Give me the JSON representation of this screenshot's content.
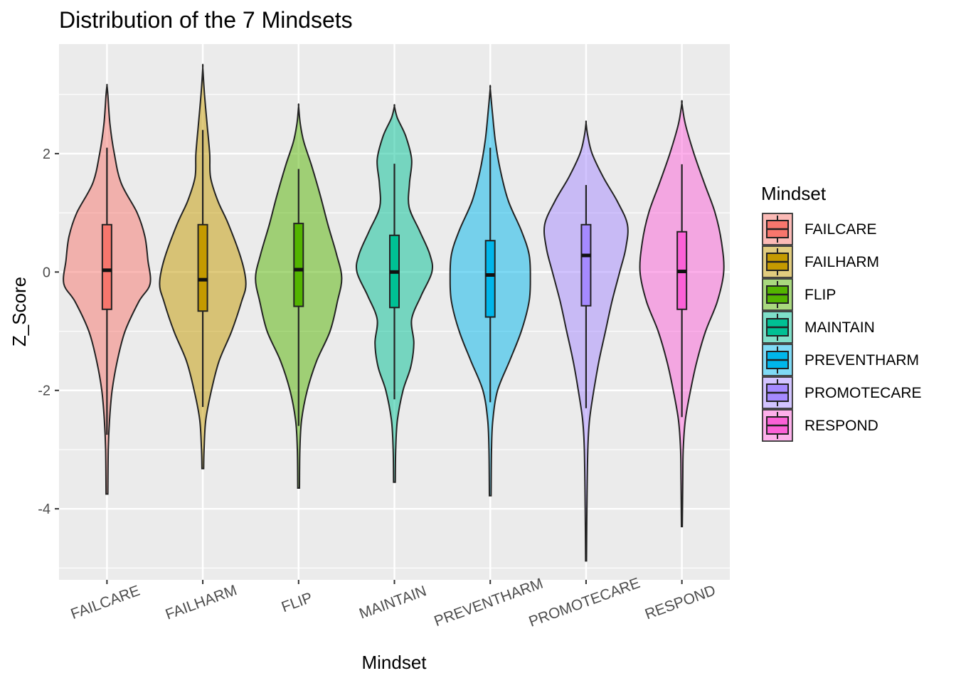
{
  "chart_data": {
    "type": "violin",
    "title": "Distribution of the 7 Mindsets",
    "xlabel": "Mindset",
    "ylabel": "Z_Score",
    "ylim": [
      -5.2,
      3.85
    ],
    "yticks": [
      -4,
      -2,
      0,
      2
    ],
    "ytick_labels": [
      "-4",
      "-2",
      "0",
      "2"
    ],
    "grid": true,
    "legend": {
      "title": "Mindset",
      "position": "right"
    },
    "categories": [
      "FAILCARE",
      "FAILHARM",
      "FLIP",
      "MAINTAIN",
      "PREVENTHARM",
      "PROMOTECARE",
      "RESPOND"
    ],
    "series": [
      {
        "name": "FAILCARE",
        "color": "#F8766D",
        "box": {
          "lower_whisker": -2.75,
          "q1": -0.63,
          "median": 0.03,
          "q3": 0.8,
          "upper_whisker": 2.1
        },
        "density": [
          [
            -3.75,
            0.02
          ],
          [
            -3.0,
            0.03
          ],
          [
            -2.5,
            0.06
          ],
          [
            -2.0,
            0.12
          ],
          [
            -1.5,
            0.24
          ],
          [
            -1.0,
            0.42
          ],
          [
            -0.5,
            0.74
          ],
          [
            -0.2,
            1.0
          ],
          [
            0.2,
            0.95
          ],
          [
            0.6,
            0.88
          ],
          [
            1.0,
            0.7
          ],
          [
            1.5,
            0.33
          ],
          [
            2.0,
            0.17
          ],
          [
            2.5,
            0.07
          ],
          [
            3.0,
            0.02
          ],
          [
            3.15,
            0.0
          ]
        ]
      },
      {
        "name": "FAILHARM",
        "color": "#C49A00",
        "box": {
          "lower_whisker": -2.28,
          "q1": -0.66,
          "median": -0.13,
          "q3": 0.8,
          "upper_whisker": 2.4
        },
        "density": [
          [
            -3.32,
            0.02
          ],
          [
            -3.0,
            0.03
          ],
          [
            -2.5,
            0.07
          ],
          [
            -2.0,
            0.2
          ],
          [
            -1.5,
            0.38
          ],
          [
            -1.0,
            0.67
          ],
          [
            -0.5,
            0.9
          ],
          [
            -0.2,
            1.0
          ],
          [
            0.2,
            0.9
          ],
          [
            0.8,
            0.6
          ],
          [
            1.2,
            0.35
          ],
          [
            1.6,
            0.18
          ],
          [
            2.0,
            0.16
          ],
          [
            2.5,
            0.1
          ],
          [
            3.0,
            0.04
          ],
          [
            3.45,
            0.0
          ]
        ]
      },
      {
        "name": "FLIP",
        "color": "#53B400",
        "box": {
          "lower_whisker": -2.6,
          "q1": -0.58,
          "median": 0.04,
          "q3": 0.82,
          "upper_whisker": 1.74
        },
        "density": [
          [
            -3.65,
            0.02
          ],
          [
            -3.0,
            0.03
          ],
          [
            -2.5,
            0.07
          ],
          [
            -2.0,
            0.2
          ],
          [
            -1.5,
            0.42
          ],
          [
            -1.0,
            0.73
          ],
          [
            -0.5,
            0.9
          ],
          [
            -0.1,
            1.0
          ],
          [
            0.3,
            0.88
          ],
          [
            0.8,
            0.68
          ],
          [
            1.3,
            0.5
          ],
          [
            1.8,
            0.3
          ],
          [
            2.2,
            0.12
          ],
          [
            2.5,
            0.04
          ],
          [
            2.8,
            0.0
          ]
        ]
      },
      {
        "name": "MAINTAIN",
        "color": "#00C094",
        "box": {
          "lower_whisker": -2.15,
          "q1": -0.6,
          "median": 0.0,
          "q3": 0.62,
          "upper_whisker": 1.83
        },
        "density": [
          [
            -3.55,
            0.02
          ],
          [
            -3.0,
            0.03
          ],
          [
            -2.5,
            0.07
          ],
          [
            -2.0,
            0.2
          ],
          [
            -1.6,
            0.38
          ],
          [
            -1.2,
            0.45
          ],
          [
            -0.8,
            0.4
          ],
          [
            -0.4,
            0.62
          ],
          [
            0.0,
            0.87
          ],
          [
            0.3,
            0.82
          ],
          [
            0.7,
            0.58
          ],
          [
            1.1,
            0.34
          ],
          [
            1.5,
            0.35
          ],
          [
            1.9,
            0.4
          ],
          [
            2.3,
            0.26
          ],
          [
            2.6,
            0.07
          ],
          [
            2.8,
            0.0
          ]
        ]
      },
      {
        "name": "PREVENTHARM",
        "color": "#00B6EB",
        "box": {
          "lower_whisker": -2.2,
          "q1": -0.76,
          "median": -0.05,
          "q3": 0.53,
          "upper_whisker": 2.1
        },
        "density": [
          [
            -3.78,
            0.02
          ],
          [
            -3.0,
            0.03
          ],
          [
            -2.5,
            0.06
          ],
          [
            -2.0,
            0.17
          ],
          [
            -1.5,
            0.45
          ],
          [
            -1.0,
            0.72
          ],
          [
            -0.5,
            0.9
          ],
          [
            -0.1,
            0.93
          ],
          [
            0.3,
            0.9
          ],
          [
            0.7,
            0.72
          ],
          [
            1.2,
            0.42
          ],
          [
            1.7,
            0.24
          ],
          [
            2.2,
            0.12
          ],
          [
            2.7,
            0.05
          ],
          [
            3.1,
            0.0
          ]
        ]
      },
      {
        "name": "PROMOTECARE",
        "color": "#A58AFF",
        "box": {
          "lower_whisker": -2.3,
          "q1": -0.57,
          "median": 0.28,
          "q3": 0.8,
          "upper_whisker": 1.47
        },
        "density": [
          [
            -4.88,
            0.01
          ],
          [
            -4.0,
            0.02
          ],
          [
            -3.0,
            0.04
          ],
          [
            -2.5,
            0.08
          ],
          [
            -2.0,
            0.18
          ],
          [
            -1.5,
            0.3
          ],
          [
            -1.0,
            0.45
          ],
          [
            -0.5,
            0.6
          ],
          [
            0.0,
            0.78
          ],
          [
            0.4,
            0.92
          ],
          [
            0.8,
            0.96
          ],
          [
            1.2,
            0.72
          ],
          [
            1.6,
            0.4
          ],
          [
            2.0,
            0.14
          ],
          [
            2.3,
            0.04
          ],
          [
            2.52,
            0.0
          ]
        ]
      },
      {
        "name": "RESPOND",
        "color": "#FB61D7",
        "box": {
          "lower_whisker": -2.45,
          "q1": -0.63,
          "median": 0.01,
          "q3": 0.68,
          "upper_whisker": 1.82
        },
        "density": [
          [
            -4.3,
            0.01
          ],
          [
            -3.5,
            0.02
          ],
          [
            -3.0,
            0.03
          ],
          [
            -2.5,
            0.08
          ],
          [
            -2.0,
            0.2
          ],
          [
            -1.5,
            0.35
          ],
          [
            -1.0,
            0.55
          ],
          [
            -0.5,
            0.82
          ],
          [
            0.0,
            0.97
          ],
          [
            0.5,
            0.92
          ],
          [
            1.0,
            0.77
          ],
          [
            1.5,
            0.52
          ],
          [
            2.0,
            0.28
          ],
          [
            2.5,
            0.08
          ],
          [
            2.85,
            0.0
          ]
        ]
      }
    ]
  }
}
